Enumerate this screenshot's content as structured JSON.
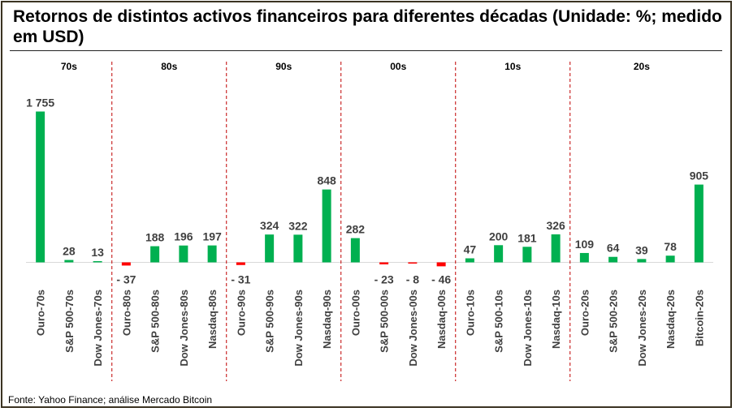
{
  "title": "Retornos de distintos activos financeiros para diferentes décadas (Unidade: %; medido em USD)",
  "source": "Fonte: Yahoo Finance; análise Mercado Bitcoin",
  "colors": {
    "positive": "#00b050",
    "negative": "#ff0000",
    "divider": "#c00000",
    "baseline": "#d9d9d9"
  },
  "chart_data": {
    "type": "bar",
    "title": "Retornos de distintos activos financeiros para diferentes décadas (Unidade: %; medido em USD)",
    "xlabel": "",
    "ylabel": "",
    "ylim": [
      -60,
      1800
    ],
    "grid": false,
    "legend": "none",
    "groups": [
      {
        "name": "70s",
        "categories": [
          "Ouro-70s",
          "S&P 500-70s",
          "Dow Jones-70s"
        ],
        "values": [
          1755,
          28,
          13
        ],
        "labels": [
          "1 755",
          "28",
          "13"
        ]
      },
      {
        "name": "80s",
        "categories": [
          "Ouro-80s",
          "S&P 500-80s",
          "Dow Jones-80s",
          "Nasdaq-80s"
        ],
        "values": [
          -37,
          188,
          196,
          197
        ],
        "labels": [
          "- 37",
          "188",
          "196",
          "197"
        ]
      },
      {
        "name": "90s",
        "categories": [
          "Ouro-90s",
          "S&P 500-90s",
          "Dow Jones-90s",
          "Nasdaq-90s"
        ],
        "values": [
          -31,
          324,
          322,
          848
        ],
        "labels": [
          "- 31",
          "324",
          "322",
          "848"
        ]
      },
      {
        "name": "00s",
        "categories": [
          "Ouro-00s",
          "S&P 500-00s",
          "Dow Jones-00s",
          "Nasdaq-00s"
        ],
        "values": [
          282,
          -23,
          -8,
          -46
        ],
        "labels": [
          "282",
          "- 23",
          "- 8",
          "- 46"
        ]
      },
      {
        "name": "10s",
        "categories": [
          "Ouro-10s",
          "S&P 500-10s",
          "Dow Jones-10s",
          "Nasdaq-10s"
        ],
        "values": [
          47,
          200,
          181,
          326
        ],
        "labels": [
          "47",
          "200",
          "181",
          "326"
        ]
      },
      {
        "name": "20s",
        "categories": [
          "Ouro-20s",
          "S&P 500-20s",
          "Dow Jones-20s",
          "Nasdaq-20s",
          "Bitcoin-20s"
        ],
        "values": [
          109,
          64,
          39,
          78,
          905
        ],
        "labels": [
          "109",
          "64",
          "39",
          "78",
          "905"
        ]
      }
    ]
  }
}
